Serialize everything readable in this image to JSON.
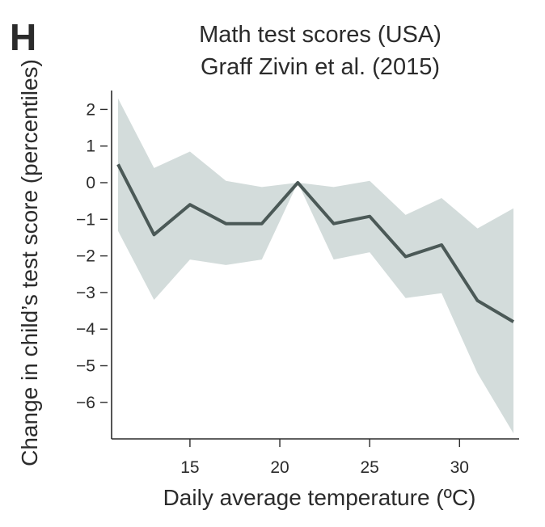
{
  "panel": {
    "letter": "H"
  },
  "chart_data": {
    "type": "line",
    "title": "Math test scores (USA)",
    "subtitle": "Graff Zivin et al. (2015)",
    "xlabel": "Daily average temperature (ºC)",
    "ylabel": "Change in child’s test score (percentiles)",
    "xlim": [
      10.6,
      33.2
    ],
    "ylim": [
      -7.0,
      2.6
    ],
    "x_ticks": [
      15,
      20,
      25,
      30
    ],
    "x_tick_labels": [
      "15",
      "20",
      "25",
      "30"
    ],
    "y_ticks": [
      2,
      1,
      0,
      -1,
      -2,
      -3,
      -4,
      -5,
      -6
    ],
    "y_tick_labels": [
      "2",
      "1",
      "0",
      "−1",
      "−2",
      "−3",
      "−4",
      "−5",
      "−6"
    ],
    "grid": false,
    "legend": "none",
    "x": [
      11,
      13,
      15,
      17,
      19,
      21,
      23,
      25,
      27,
      29,
      31,
      33
    ],
    "series": [
      {
        "values": [
          0.5,
          -1.42,
          -0.6,
          -1.12,
          -1.12,
          0.0,
          -1.12,
          -0.92,
          -2.02,
          -1.7,
          -3.22,
          -3.8
        ],
        "lower": [
          -1.32,
          -3.2,
          -2.1,
          -2.25,
          -2.1,
          0.0,
          -2.1,
          -1.9,
          -3.15,
          -3.02,
          -5.2,
          -6.85
        ],
        "upper": [
          2.3,
          0.4,
          0.85,
          0.05,
          -0.12,
          0.0,
          -0.12,
          0.05,
          -0.88,
          -0.42,
          -1.25,
          -0.7
        ]
      }
    ],
    "colors": {
      "line": "#4b5957",
      "band": "#d3dcdb",
      "axis": "#2b2b2b"
    }
  }
}
